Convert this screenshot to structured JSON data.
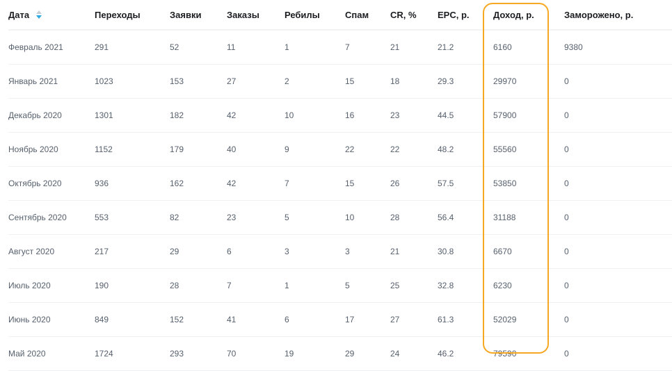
{
  "headers": [
    "Дата",
    "Переходы",
    "Заявки",
    "Заказы",
    "Ребилы",
    "Спам",
    "CR, %",
    "EPC, р.",
    "Доход, р.",
    "Заморожено, р."
  ],
  "sort": {
    "column": "Дата",
    "direction": "descending",
    "icon": "sort-arrows-icon"
  },
  "highlight": {
    "column": "Доход, р.",
    "color": "#f6a823"
  },
  "rows": [
    [
      "Февраль 2021",
      "291",
      "52",
      "11",
      "1",
      "7",
      "21",
      "21.2",
      "6160",
      "9380"
    ],
    [
      "Январь 2021",
      "1023",
      "153",
      "27",
      "2",
      "15",
      "18",
      "29.3",
      "29970",
      "0"
    ],
    [
      "Декабрь 2020",
      "1301",
      "182",
      "42",
      "10",
      "16",
      "23",
      "44.5",
      "57900",
      "0"
    ],
    [
      "Ноябрь 2020",
      "1152",
      "179",
      "40",
      "9",
      "22",
      "22",
      "48.2",
      "55560",
      "0"
    ],
    [
      "Октябрь 2020",
      "936",
      "162",
      "42",
      "7",
      "15",
      "26",
      "57.5",
      "53850",
      "0"
    ],
    [
      "Сентябрь 2020",
      "553",
      "82",
      "23",
      "5",
      "10",
      "28",
      "56.4",
      "31188",
      "0"
    ],
    [
      "Август 2020",
      "217",
      "29",
      "6",
      "3",
      "3",
      "21",
      "30.8",
      "6670",
      "0"
    ],
    [
      "Июль 2020",
      "190",
      "28",
      "7",
      "1",
      "5",
      "25",
      "32.8",
      "6230",
      "0"
    ],
    [
      "Июнь 2020",
      "849",
      "152",
      "41",
      "6",
      "17",
      "27",
      "61.3",
      "52029",
      "0"
    ],
    [
      "Май 2020",
      "1724",
      "293",
      "70",
      "19",
      "29",
      "24",
      "46.2",
      "79590",
      "0"
    ]
  ]
}
